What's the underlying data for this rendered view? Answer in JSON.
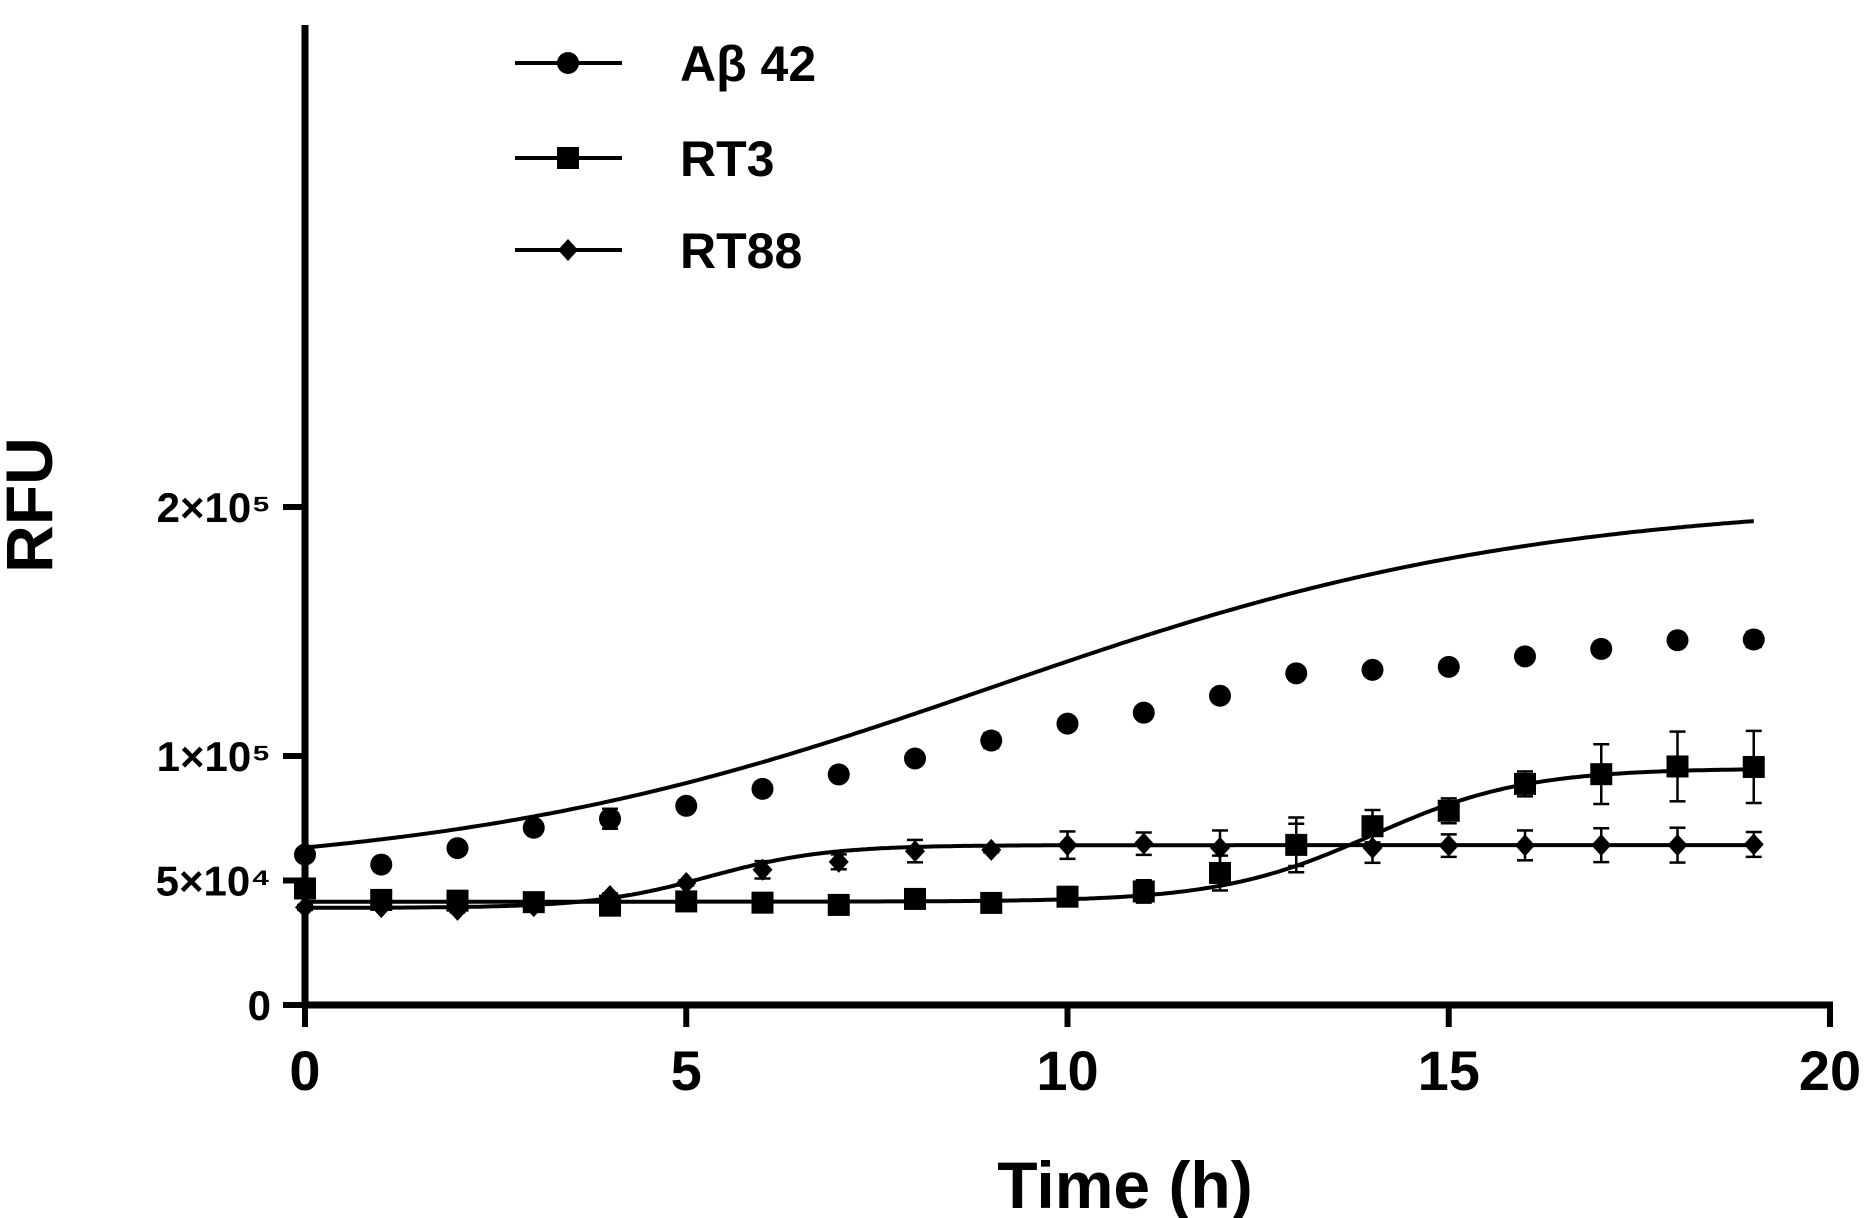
{
  "chart_data": {
    "type": "line",
    "xlabel": "Time (h)",
    "ylabel": "RFU",
    "xlim": [
      0,
      20
    ],
    "ylim": [
      0,
      240000
    ],
    "xticks": [
      {
        "value": 0,
        "label": "0"
      },
      {
        "value": 5,
        "label": "5"
      },
      {
        "value": 10,
        "label": "10"
      },
      {
        "value": 15,
        "label": "15"
      },
      {
        "value": 20,
        "label": "20"
      }
    ],
    "yticks": [
      {
        "value": 0,
        "label": "0"
      },
      {
        "value": 50000,
        "label": "5×10⁴"
      },
      {
        "value": 100000,
        "label": "1×10⁵"
      },
      {
        "value": 200000,
        "label": "2×10⁵"
      }
    ],
    "grid": false,
    "legend_position": "top-left",
    "series": [
      {
        "name": "Aβ 42",
        "marker": "circle",
        "x": [
          0,
          1,
          2,
          3,
          4,
          5,
          6,
          7,
          8,
          9,
          10,
          11,
          12,
          13,
          14,
          15,
          16,
          17,
          18,
          19
        ],
        "y": [
          60400,
          56400,
          63000,
          71200,
          74800,
          80000,
          86800,
          92600,
          99000,
          106200,
          113000,
          117400,
          124200,
          133200,
          134600,
          135800,
          140000,
          143000,
          146500,
          146800
        ],
        "err": [
          2500,
          1000,
          2000,
          1000,
          4000,
          1000,
          1000,
          2500,
          1000,
          3000,
          1000,
          1500,
          1000,
          2500,
          1000,
          1500,
          1000,
          2500,
          1000,
          3000
        ],
        "fit": {
          "bottom": 52000,
          "top": 203000,
          "x50": 9.0,
          "slope": 0.28
        }
      },
      {
        "name": "RT3",
        "marker": "square",
        "x": [
          0,
          1,
          2,
          3,
          4,
          5,
          6,
          7,
          8,
          9,
          10,
          11,
          12,
          13,
          14,
          15,
          16,
          17,
          18,
          19
        ],
        "y": [
          46800,
          42200,
          41900,
          41300,
          39900,
          41600,
          41100,
          40200,
          42600,
          41000,
          43500,
          45600,
          53000,
          64300,
          71800,
          78000,
          88800,
          92700,
          95800,
          95600
        ],
        "err": [
          1500,
          1500,
          1500,
          1500,
          1500,
          1500,
          1500,
          2500,
          2000,
          1500,
          1500,
          4500,
          7000,
          11000,
          6500,
          5000,
          5000,
          12000,
          14000,
          14500
        ],
        "fit": {
          "bottom": 41500,
          "top": 95000,
          "x50": 14.0,
          "slope": 1.0
        }
      },
      {
        "name": "RT88",
        "marker": "diamond",
        "x": [
          0,
          1,
          2,
          3,
          4,
          5,
          6,
          7,
          8,
          9,
          10,
          11,
          12,
          13,
          14,
          15,
          16,
          17,
          18,
          19
        ],
        "y": [
          39200,
          39300,
          38200,
          39700,
          43800,
          49000,
          54300,
          57500,
          61800,
          62300,
          64200,
          64800,
          63100,
          64300,
          63100,
          64000,
          64100,
          64200,
          64200,
          64500
        ],
        "err": [
          1000,
          1000,
          1000,
          1000,
          1000,
          1000,
          3500,
          3000,
          4500,
          1000,
          5500,
          4500,
          7000,
          8500,
          6000,
          4500,
          6000,
          6800,
          7000,
          5000
        ],
        "fit": {
          "bottom": 39000,
          "top": 64200,
          "x50": 5.3,
          "slope": 1.3
        }
      }
    ]
  }
}
